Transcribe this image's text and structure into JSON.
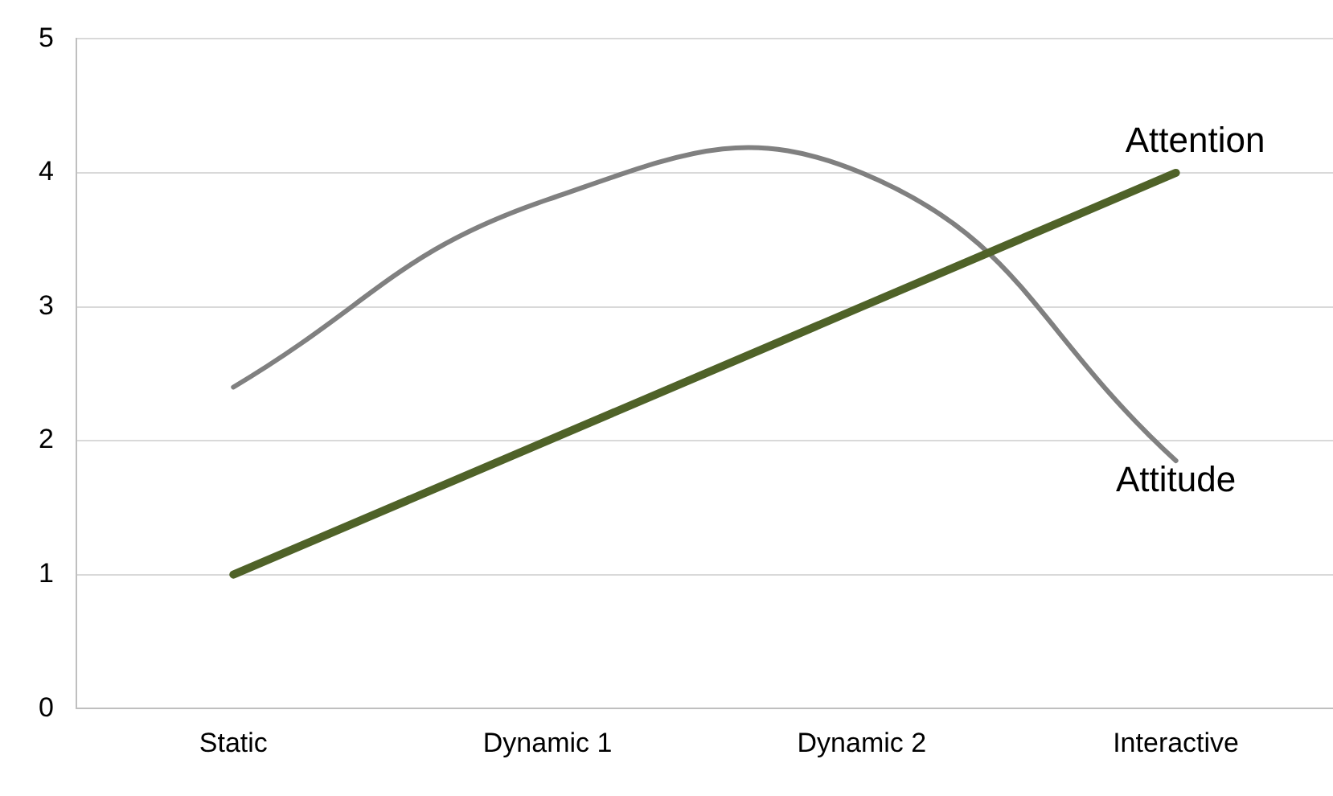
{
  "chart_data": {
    "type": "line",
    "categories": [
      "Static",
      "Dynamic 1",
      "Dynamic 2",
      "Interactive"
    ],
    "series": [
      {
        "name": "Attention",
        "color": "#4f6228",
        "values": [
          1,
          2,
          3,
          4
        ]
      },
      {
        "name": "Attitude",
        "color": "#808080",
        "values": [
          2.4,
          3.8,
          4.0,
          1.85
        ]
      }
    ],
    "ylim": [
      0,
      5
    ],
    "yticks": [
      0,
      1,
      2,
      3,
      4,
      5
    ],
    "grid": "y",
    "legend": false,
    "marker": "none"
  }
}
